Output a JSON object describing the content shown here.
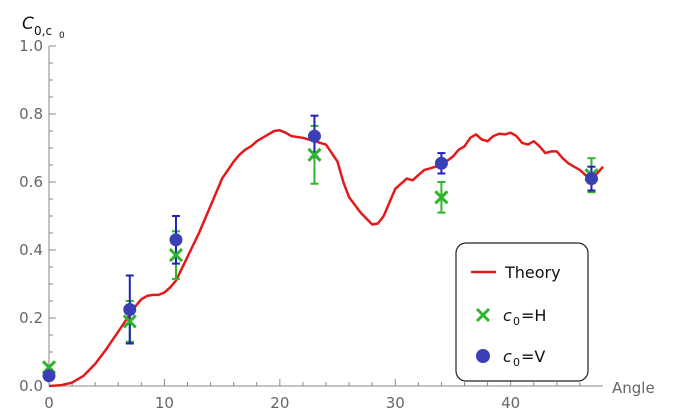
{
  "chart_data": {
    "type": "scatter",
    "ylabel_main": "C",
    "ylabel_sub": "0,c",
    "ylabel_subsub": "0",
    "xlabel": "Angle",
    "xlim": [
      0,
      48
    ],
    "ylim": [
      0,
      1.0
    ],
    "x_ticks": [
      0,
      10,
      20,
      30,
      40
    ],
    "y_ticks": [
      0.0,
      0.2,
      0.4,
      0.6,
      0.8,
      1.0
    ],
    "y_tick_labels": [
      "0.0",
      "0.2",
      "0.4",
      "0.6",
      "0.8",
      "1.0"
    ],
    "grid": false,
    "legend_position": "bottom-right",
    "series": [
      {
        "name": "Theory",
        "kind": "line",
        "color": "#e31a1c",
        "x": [
          0,
          1,
          2,
          3,
          4,
          5,
          6,
          7,
          7.5,
          8,
          8.5,
          9,
          9.5,
          10,
          10.5,
          11,
          12,
          13,
          14,
          15,
          16,
          16.5,
          17,
          17.5,
          18,
          18.5,
          19,
          19.5,
          20,
          20.5,
          21,
          22,
          23,
          24,
          25,
          25.5,
          26,
          27,
          28,
          28.5,
          29,
          30,
          31,
          31.5,
          32,
          32.5,
          33,
          33.5,
          34,
          35,
          35.5,
          36,
          36.5,
          37,
          37.5,
          38,
          38.5,
          39,
          39.5,
          40,
          40.5,
          41,
          41.5,
          42,
          42.5,
          43,
          43.5,
          44,
          44.5,
          45,
          45.5,
          46,
          46.5,
          47,
          47.5,
          48
        ],
        "y": [
          0.0,
          0.002,
          0.01,
          0.03,
          0.065,
          0.11,
          0.16,
          0.21,
          0.235,
          0.255,
          0.265,
          0.268,
          0.268,
          0.275,
          0.29,
          0.31,
          0.38,
          0.45,
          0.53,
          0.61,
          0.66,
          0.68,
          0.695,
          0.705,
          0.72,
          0.73,
          0.74,
          0.75,
          0.752,
          0.745,
          0.735,
          0.73,
          0.72,
          0.71,
          0.66,
          0.6,
          0.555,
          0.51,
          0.475,
          0.478,
          0.5,
          0.58,
          0.61,
          0.605,
          0.62,
          0.635,
          0.64,
          0.645,
          0.65,
          0.675,
          0.695,
          0.705,
          0.73,
          0.74,
          0.725,
          0.72,
          0.735,
          0.742,
          0.74,
          0.745,
          0.735,
          0.715,
          0.71,
          0.72,
          0.705,
          0.685,
          0.69,
          0.69,
          0.67,
          0.655,
          0.645,
          0.635,
          0.62,
          0.61,
          0.625,
          0.645
        ]
      },
      {
        "name": "c0=H",
        "legend_main": "c",
        "legend_sub": "0",
        "legend_suffix": "=H",
        "kind": "cross",
        "color": "#2db52d",
        "points": [
          {
            "x": 0,
            "y": 0.055,
            "err": 0.0
          },
          {
            "x": 7,
            "y": 0.19,
            "err": 0.06
          },
          {
            "x": 11,
            "y": 0.385,
            "err": 0.07
          },
          {
            "x": 23,
            "y": 0.68,
            "err": 0.085
          },
          {
            "x": 34,
            "y": 0.555,
            "err": 0.045
          },
          {
            "x": 47,
            "y": 0.62,
            "err": 0.05
          }
        ]
      },
      {
        "name": "c0=V",
        "legend_main": "c",
        "legend_sub": "0",
        "legend_suffix": "=V",
        "kind": "dot",
        "color": "#3b3fb5",
        "error_color": "#2320b8",
        "points": [
          {
            "x": 0,
            "y": 0.03,
            "err": 0.0
          },
          {
            "x": 7,
            "y": 0.225,
            "err": 0.1
          },
          {
            "x": 11,
            "y": 0.43,
            "err": 0.07
          },
          {
            "x": 23,
            "y": 0.735,
            "err": 0.06
          },
          {
            "x": 34,
            "y": 0.655,
            "err": 0.03
          },
          {
            "x": 47,
            "y": 0.61,
            "err": 0.035
          }
        ]
      }
    ],
    "legend": {
      "items": [
        "Theory",
        "c0=H",
        "c0=V"
      ]
    }
  }
}
